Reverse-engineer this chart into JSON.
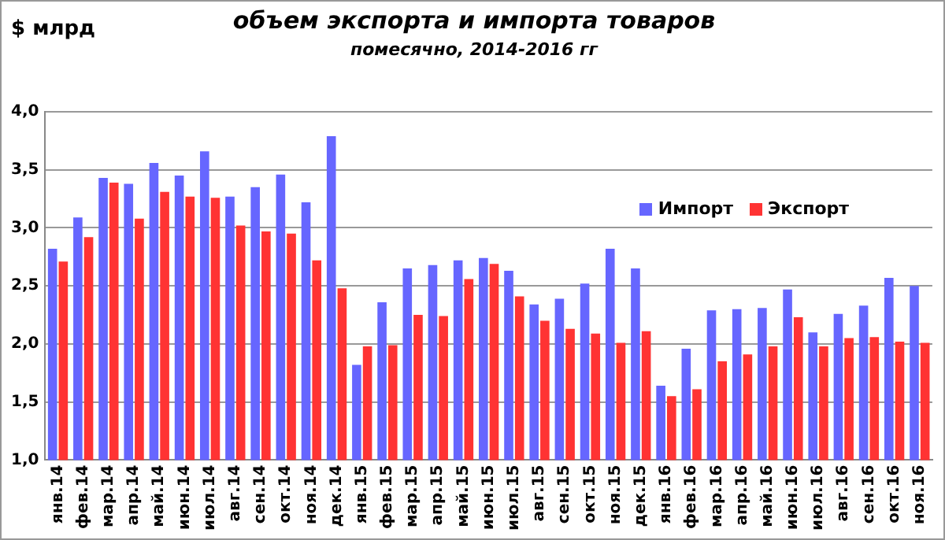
{
  "chart_data": {
    "type": "bar",
    "title": "объем экспорта и импорта товаров",
    "subtitle": "помесячно, 2014-2016 гг",
    "ylabel": "$ млрд",
    "categories": [
      "янв.14",
      "фев.14",
      "мар.14",
      "апр.14",
      "май.14",
      "июн.14",
      "июл.14",
      "авг.14",
      "сен.14",
      "окт.14",
      "ноя.14",
      "дек.14",
      "янв.15",
      "фев.15",
      "мар.15",
      "апр.15",
      "май.15",
      "июн.15",
      "июл.15",
      "авг.15",
      "сен.15",
      "окт.15",
      "ноя.15",
      "дек.15",
      "янв.16",
      "фев.16",
      "мар.16",
      "апр.16",
      "май.16",
      "июн.16",
      "июл.16",
      "авг.16",
      "сен.16",
      "окт.16",
      "ноя.16"
    ],
    "series": [
      {
        "name": "Импорт",
        "color": "#6666ff",
        "values": [
          2.82,
          3.09,
          3.43,
          3.38,
          3.56,
          3.45,
          3.66,
          3.27,
          3.35,
          3.46,
          3.22,
          3.79,
          1.82,
          2.36,
          2.65,
          2.68,
          2.72,
          2.74,
          2.63,
          2.34,
          2.39,
          2.52,
          2.82,
          2.65,
          1.64,
          1.96,
          2.29,
          2.3,
          2.31,
          2.47,
          2.1,
          2.26,
          2.33,
          2.57,
          2.5
        ]
      },
      {
        "name": "Экспорт",
        "color": "#ff3333",
        "values": [
          2.71,
          2.92,
          3.39,
          3.08,
          3.31,
          3.27,
          3.26,
          3.02,
          2.97,
          2.95,
          2.72,
          2.48,
          1.98,
          1.99,
          2.25,
          2.24,
          2.56,
          2.69,
          2.41,
          2.2,
          2.13,
          2.09,
          2.01,
          2.11,
          1.55,
          1.61,
          1.85,
          1.91,
          1.98,
          2.23,
          1.98,
          2.05,
          2.06,
          2.02,
          2.01
        ]
      }
    ],
    "ylim": [
      1,
      4
    ],
    "yticks": [
      {
        "value": 1,
        "label": "1,0"
      },
      {
        "value": 1.5,
        "label": "1,5"
      },
      {
        "value": 2,
        "label": "2,0"
      },
      {
        "value": 2.5,
        "label": "2,5"
      },
      {
        "value": 3,
        "label": "3,0"
      },
      {
        "value": 3.5,
        "label": "3,5"
      },
      {
        "value": 4,
        "label": "4,0"
      }
    ],
    "grid": "y",
    "legend": "top right"
  }
}
